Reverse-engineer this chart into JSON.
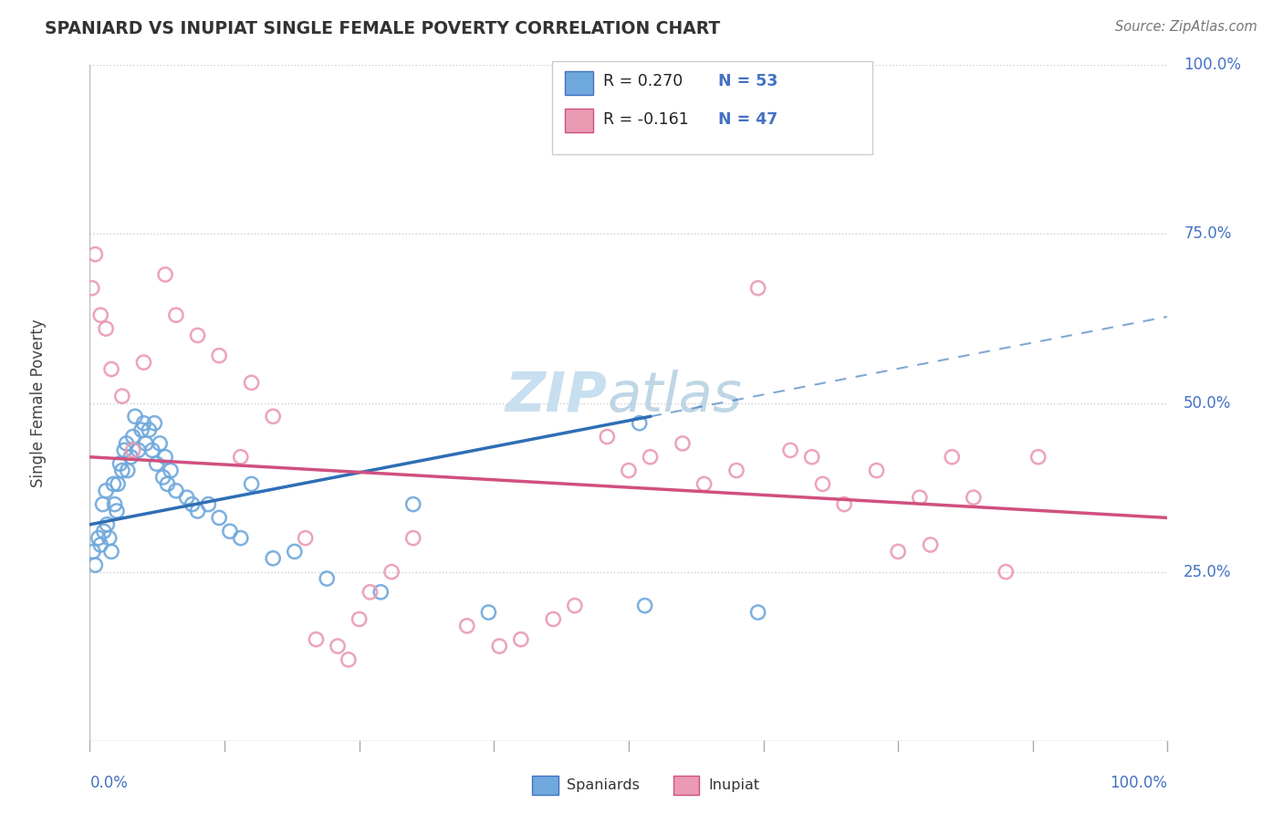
{
  "title": "SPANIARD VS INUPIAT SINGLE FEMALE POVERTY CORRELATION CHART",
  "source": "Source: ZipAtlas.com",
  "ylabel": "Single Female Poverty",
  "spaniard_color": "#6fa8dc",
  "inupiat_color": "#ea9ab2",
  "spaniard_line_color": "#2e6eb5",
  "inupiat_line_color": "#d05080",
  "background_color": "#ffffff",
  "watermark_color": "#c8dff0",
  "spaniard_x": [
    0.3,
    0.5,
    0.8,
    1.0,
    1.2,
    1.3,
    1.5,
    1.6,
    1.8,
    2.0,
    2.2,
    2.3,
    2.5,
    2.6,
    2.8,
    3.0,
    3.2,
    3.4,
    3.5,
    3.8,
    4.0,
    4.2,
    4.5,
    4.8,
    5.0,
    5.2,
    5.5,
    5.8,
    6.0,
    6.2,
    6.5,
    6.8,
    7.0,
    7.2,
    7.5,
    8.0,
    9.0,
    9.5,
    10.0,
    11.0,
    12.0,
    13.0,
    14.0,
    15.0,
    17.0,
    19.0,
    22.0,
    27.0,
    30.0,
    37.0,
    51.0,
    51.5,
    62.0
  ],
  "spaniard_y": [
    28.0,
    26.0,
    30.0,
    29.0,
    35.0,
    31.0,
    37.0,
    32.0,
    30.0,
    28.0,
    38.0,
    35.0,
    34.0,
    38.0,
    41.0,
    40.0,
    43.0,
    44.0,
    40.0,
    42.0,
    45.0,
    48.0,
    43.0,
    46.0,
    47.0,
    44.0,
    46.0,
    43.0,
    47.0,
    41.0,
    44.0,
    39.0,
    42.0,
    38.0,
    40.0,
    37.0,
    36.0,
    35.0,
    34.0,
    35.0,
    33.0,
    31.0,
    30.0,
    38.0,
    27.0,
    28.0,
    24.0,
    22.0,
    35.0,
    19.0,
    47.0,
    20.0,
    19.0
  ],
  "inupiat_x": [
    0.2,
    0.5,
    1.0,
    1.5,
    2.0,
    3.0,
    4.0,
    5.0,
    7.0,
    8.0,
    10.0,
    12.0,
    14.0,
    15.0,
    17.0,
    20.0,
    21.0,
    23.0,
    24.0,
    25.0,
    26.0,
    28.0,
    30.0,
    35.0,
    38.0,
    40.0,
    43.0,
    45.0,
    48.0,
    50.0,
    52.0,
    55.0,
    57.0,
    60.0,
    62.0,
    65.0,
    67.0,
    68.0,
    70.0,
    73.0,
    75.0,
    77.0,
    78.0,
    80.0,
    82.0,
    85.0,
    88.0
  ],
  "inupiat_y": [
    67.0,
    72.0,
    63.0,
    61.0,
    55.0,
    51.0,
    43.0,
    56.0,
    69.0,
    63.0,
    60.0,
    57.0,
    42.0,
    53.0,
    48.0,
    30.0,
    15.0,
    14.0,
    12.0,
    18.0,
    22.0,
    25.0,
    30.0,
    17.0,
    14.0,
    15.0,
    18.0,
    20.0,
    45.0,
    40.0,
    42.0,
    44.0,
    38.0,
    40.0,
    67.0,
    43.0,
    42.0,
    38.0,
    35.0,
    40.0,
    28.0,
    36.0,
    29.0,
    42.0,
    36.0,
    25.0,
    42.0
  ],
  "xlim": [
    0,
    100
  ],
  "ylim": [
    0,
    100
  ],
  "ytick_vals": [
    25,
    50,
    75,
    100
  ],
  "ytick_labels": [
    "25.0%",
    "50.0%",
    "75.0%",
    "100.0%"
  ],
  "spaniard_line_x0": 0,
  "spaniard_line_y0": 32,
  "spaniard_line_x1": 52,
  "spaniard_line_y1": 48,
  "inupiat_line_x0": 0,
  "inupiat_line_y0": 42,
  "inupiat_line_x1": 100,
  "inupiat_line_y1": 33
}
